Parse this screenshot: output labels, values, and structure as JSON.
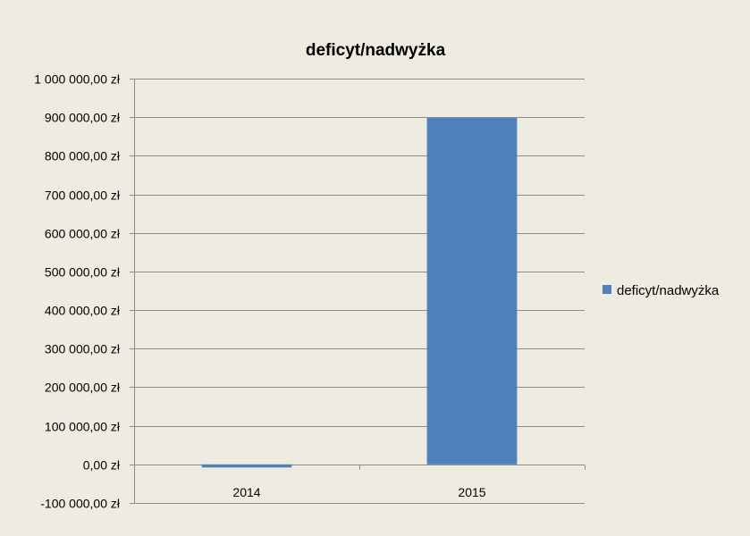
{
  "chart_data": {
    "type": "bar",
    "title": "deficyt/nadwyżka",
    "categories": [
      "2014",
      "2015"
    ],
    "series": [
      {
        "name": "deficyt/nadwyżka",
        "values": [
          -8000,
          898000
        ],
        "color": "#4F81BD"
      }
    ],
    "ylim": [
      -100000,
      1000000
    ],
    "y_ticks": [
      {
        "value": 1000000,
        "label": "1 000 000,00 zł"
      },
      {
        "value": 900000,
        "label": "900 000,00 zł"
      },
      {
        "value": 800000,
        "label": "800 000,00 zł"
      },
      {
        "value": 700000,
        "label": "700 000,00 zł"
      },
      {
        "value": 600000,
        "label": "600 000,00 zł"
      },
      {
        "value": 500000,
        "label": "500 000,00 zł"
      },
      {
        "value": 400000,
        "label": "400 000,00 zł"
      },
      {
        "value": 300000,
        "label": "300 000,00 zł"
      },
      {
        "value": 200000,
        "label": "200 000,00 zł"
      },
      {
        "value": 100000,
        "label": "100 000,00 zł"
      },
      {
        "value": 0,
        "label": "0,00 zł"
      },
      {
        "value": -100000,
        "label": "-100 000,00 zł"
      }
    ],
    "negative_tick_color": "#E00000",
    "grid": true,
    "legend_position": "right",
    "background": "#EEEBE1"
  }
}
